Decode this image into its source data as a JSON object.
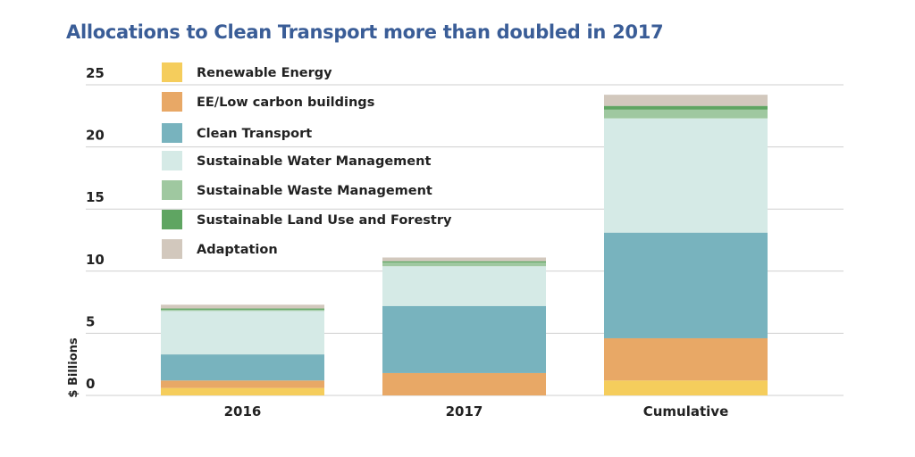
{
  "chart_data": {
    "type": "bar",
    "stacked": true,
    "title": "Allocations to Clean Transport more than doubled in 2017",
    "ylabel": "$ Billions",
    "xlabel": "",
    "ylim": [
      0,
      25
    ],
    "yticks": [
      0,
      5,
      10,
      15,
      20,
      25
    ],
    "grid": true,
    "legend_placement": "top-left",
    "categories": [
      "2016",
      "2017",
      "Cumulative"
    ],
    "series": [
      {
        "name": "Renewable Energy",
        "color": "#f5cd5c",
        "values": [
          0.6,
          0.0,
          1.2
        ]
      },
      {
        "name": "EE/Low carbon buildings",
        "color": "#e8a866",
        "values": [
          0.6,
          1.8,
          3.4
        ]
      },
      {
        "name": "Clean Transport",
        "color": "#78b3be",
        "values": [
          2.1,
          5.4,
          8.5
        ]
      },
      {
        "name": "Sustainable Water Management",
        "color": "#d5eae6",
        "values": [
          3.5,
          3.2,
          9.2
        ]
      },
      {
        "name": "Sustainable Waste Management",
        "color": "#9fc8a0",
        "values": [
          0.1,
          0.3,
          0.7
        ]
      },
      {
        "name": "Sustainable Land Use and Forestry",
        "color": "#5fa562",
        "values": [
          0.1,
          0.1,
          0.3
        ]
      },
      {
        "name": "Adaptation",
        "color": "#d2c8bd",
        "values": [
          0.3,
          0.3,
          0.9
        ]
      }
    ]
  }
}
